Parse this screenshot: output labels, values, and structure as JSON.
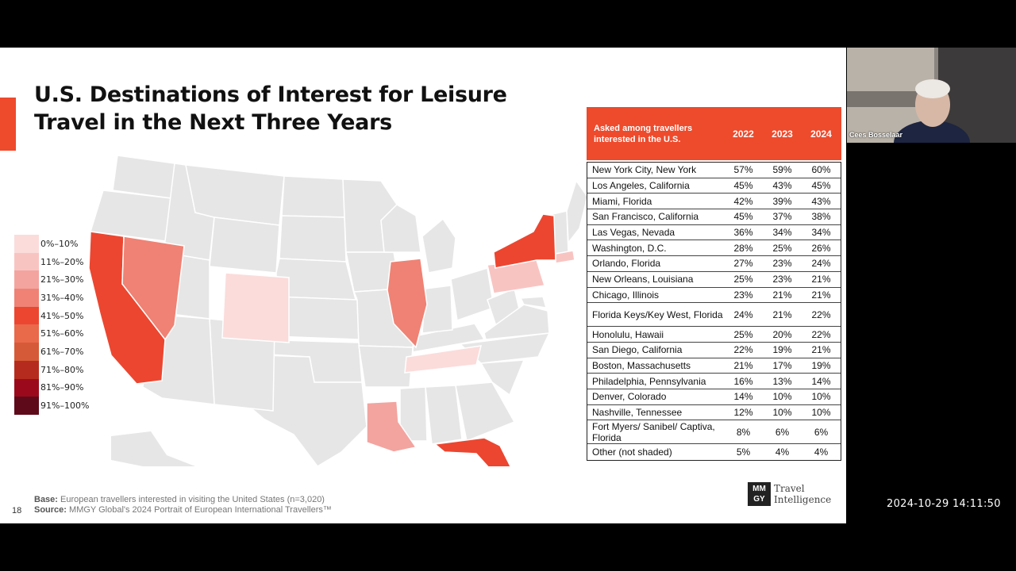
{
  "slide": {
    "title_line1": "U.S. Destinations of Interest for Leisure",
    "title_line2": "Travel in the Next Three Years",
    "page_number": "18",
    "base_label": "Base:",
    "base_text": "European travellers interested in visiting the United States (n=3,020)",
    "source_label": "Source:",
    "source_text": "MMGY Global's 2024 Portrait of European International Travellers™",
    "logo_mark_top": "MM",
    "logo_mark_bottom": "GY",
    "logo_line1": "Travel",
    "logo_line2": "Intelligence"
  },
  "legend": [
    {
      "label": "0%–10%",
      "color": "#fbdcdb"
    },
    {
      "label": "11%–20%",
      "color": "#f8c4c2"
    },
    {
      "label": "21%–30%",
      "color": "#f3a49f"
    },
    {
      "label": "31%–40%",
      "color": "#ef8274"
    },
    {
      "label": "41%–50%",
      "color": "#ec4630"
    },
    {
      "label": "51%–60%",
      "color": "#e9694b"
    },
    {
      "label": "61%–70%",
      "color": "#d55a37"
    },
    {
      "label": "71%–80%",
      "color": "#b52c1e"
    },
    {
      "label": "81%–90%",
      "color": "#9a0a1c"
    },
    {
      "label": "91%–100%",
      "color": "#5e0a1a"
    }
  ],
  "table": {
    "header_label": "Asked among travellers interested in the U.S.",
    "years": [
      "2022",
      "2023",
      "2024"
    ],
    "rows": [
      {
        "name": "New York City, New York",
        "v": [
          "57%",
          "59%",
          "60%"
        ]
      },
      {
        "name": "Los Angeles, California",
        "v": [
          "45%",
          "43%",
          "45%"
        ]
      },
      {
        "name": "Miami, Florida",
        "v": [
          "42%",
          "39%",
          "43%"
        ]
      },
      {
        "name": "San Francisco, California",
        "v": [
          "45%",
          "37%",
          "38%"
        ]
      },
      {
        "name": "Las Vegas, Nevada",
        "v": [
          "36%",
          "34%",
          "34%"
        ]
      },
      {
        "name": "Washington, D.C.",
        "v": [
          "28%",
          "25%",
          "26%"
        ]
      },
      {
        "name": "Orlando, Florida",
        "v": [
          "27%",
          "23%",
          "24%"
        ]
      },
      {
        "name": "New Orleans, Louisiana",
        "v": [
          "25%",
          "23%",
          "21%"
        ]
      },
      {
        "name": "Chicago, Illinois",
        "v": [
          "23%",
          "21%",
          "21%"
        ]
      },
      {
        "name": "Florida Keys/Key West, Florida",
        "v": [
          "24%",
          "21%",
          "22%"
        ]
      },
      {
        "name": "Honolulu, Hawaii",
        "v": [
          "25%",
          "20%",
          "22%"
        ]
      },
      {
        "name": "San Diego, California",
        "v": [
          "22%",
          "19%",
          "21%"
        ]
      },
      {
        "name": "Boston, Massachusetts",
        "v": [
          "21%",
          "17%",
          "19%"
        ]
      },
      {
        "name": "Philadelphia, Pennsylvania",
        "v": [
          "16%",
          "13%",
          "14%"
        ]
      },
      {
        "name": "Denver, Colorado",
        "v": [
          "14%",
          "10%",
          "10%"
        ]
      },
      {
        "name": "Nashville, Tennessee",
        "v": [
          "12%",
          "10%",
          "10%"
        ]
      },
      {
        "name": "Fort Myers/ Sanibel/ Captiva, Florida",
        "v": [
          "8%",
          "6%",
          "6%"
        ]
      },
      {
        "name": "Other (not shaded)",
        "v": [
          "5%",
          "4%",
          "4%"
        ]
      }
    ]
  },
  "video": {
    "participant_name": "Cees Bosselaar"
  },
  "clock": {
    "timestamp": "2024-10-29 14:11:50"
  },
  "colors": {
    "accent": "#ee4a2c",
    "state_default": "#e6e6e6"
  }
}
